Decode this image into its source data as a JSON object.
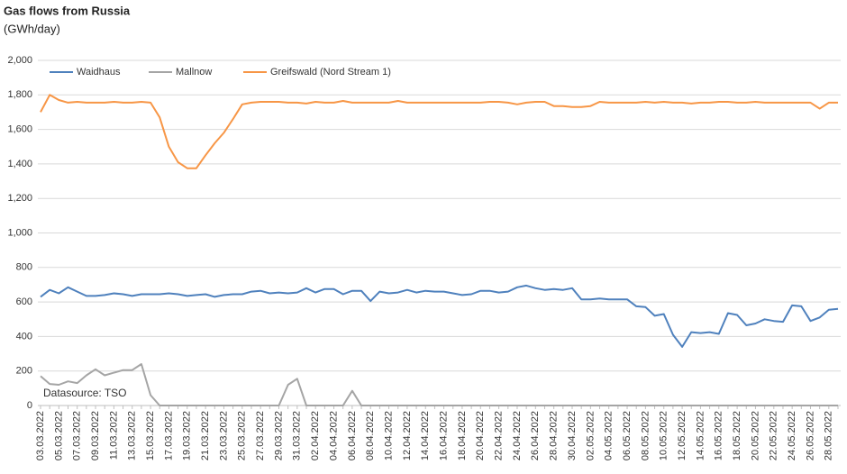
{
  "chart_data": {
    "type": "line",
    "title": "Gas flows from Russia",
    "subtitle": "(GWh/day)",
    "annotation": "Datasource: TSO",
    "categories": [
      "03.03.2022",
      null,
      "05.03.2022",
      null,
      "07.03.2022",
      null,
      "09.03.2022",
      null,
      "11.03.2022",
      null,
      "13.03.2022",
      null,
      "15.03.2022",
      null,
      "17.03.2022",
      null,
      "19.03.2022",
      null,
      "21.03.2022",
      null,
      "23.03.2022",
      null,
      "25.03.2022",
      null,
      "27.03.2022",
      null,
      "29.03.2022",
      null,
      "31.03.2022",
      null,
      "02.04.2022",
      null,
      "04.04.2022",
      null,
      "06.04.2022",
      null,
      "08.04.2022",
      null,
      "10.04.2022",
      null,
      "12.04.2022",
      null,
      "14.04.2022",
      null,
      "16.04.2022",
      null,
      "18.04.2022",
      null,
      "20.04.2022",
      null,
      "22.04.2022",
      null,
      "24.04.2022",
      null,
      "26.04.2022",
      null,
      "28.04.2022",
      null,
      "30.04.2022",
      null,
      "02.05.2022",
      null,
      "04.05.2022",
      null,
      "06.05.2022",
      null,
      "08.05.2022",
      null,
      "10.05.2022",
      null,
      "12.05.2022",
      null,
      "14.05.2022",
      null,
      "16.05.2022",
      null,
      "18.05.2022",
      null,
      "20.05.2022",
      null,
      "22.05.2022",
      null,
      "24.05.2022",
      null,
      "26.05.2022",
      null,
      "28.05.2022",
      null
    ],
    "series": [
      {
        "name": "Waidhaus",
        "color": "#4f81bd",
        "values": [
          630,
          670,
          650,
          685,
          660,
          635,
          635,
          640,
          650,
          645,
          635,
          645,
          645,
          645,
          650,
          645,
          635,
          640,
          645,
          630,
          640,
          645,
          645,
          660,
          665,
          650,
          655,
          650,
          655,
          680,
          655,
          675,
          675,
          645,
          665,
          665,
          605,
          660,
          650,
          655,
          670,
          655,
          665,
          660,
          660,
          650,
          640,
          645,
          665,
          665,
          655,
          660,
          685,
          695,
          680,
          670,
          675,
          670,
          680,
          615,
          615,
          620,
          615,
          615,
          615,
          575,
          570,
          520,
          530,
          410,
          340,
          425,
          420,
          425,
          415,
          535,
          525,
          465,
          475,
          500,
          490,
          485,
          580,
          575,
          490,
          510,
          555,
          560
        ]
      },
      {
        "name": "Mallnow",
        "color": "#a5a5a5",
        "values": [
          170,
          125,
          120,
          140,
          130,
          175,
          210,
          175,
          190,
          205,
          205,
          240,
          60,
          0,
          0,
          0,
          0,
          0,
          0,
          0,
          0,
          0,
          0,
          0,
          0,
          0,
          0,
          120,
          155,
          0,
          0,
          0,
          0,
          0,
          85,
          0,
          0,
          0,
          0,
          0,
          0,
          0,
          0,
          0,
          0,
          0,
          0,
          0,
          0,
          0,
          0,
          0,
          0,
          0,
          0,
          0,
          0,
          0,
          0,
          0,
          0,
          0,
          0,
          0,
          0,
          0,
          0,
          0,
          0,
          0,
          0,
          0,
          0,
          0,
          0,
          0,
          0,
          0,
          0,
          0,
          0,
          0,
          0,
          0,
          0,
          0,
          0,
          0
        ]
      },
      {
        "name": "Greifswald (Nord Stream 1)",
        "color": "#f79646",
        "values": [
          1700,
          1800,
          1770,
          1755,
          1760,
          1755,
          1755,
          1755,
          1760,
          1755,
          1755,
          1760,
          1755,
          1670,
          1500,
          1410,
          1375,
          1375,
          1450,
          1520,
          1580,
          1660,
          1745,
          1755,
          1760,
          1760,
          1760,
          1755,
          1755,
          1750,
          1760,
          1755,
          1755,
          1765,
          1755,
          1755,
          1755,
          1755,
          1755,
          1765,
          1755,
          1755,
          1755,
          1755,
          1755,
          1755,
          1755,
          1755,
          1755,
          1760,
          1760,
          1755,
          1745,
          1755,
          1760,
          1760,
          1735,
          1735,
          1730,
          1730,
          1735,
          1760,
          1755,
          1755,
          1755,
          1755,
          1760,
          1755,
          1760,
          1755,
          1755,
          1750,
          1755,
          1755,
          1760,
          1760,
          1755,
          1755,
          1760,
          1755,
          1755,
          1755,
          1755,
          1755,
          1755,
          1720,
          1755,
          1755
        ]
      }
    ],
    "ylim": [
      0,
      2000
    ],
    "yticks": [
      0,
      200,
      400,
      600,
      800,
      {
        "value": 1000,
        "label": "1,000"
      },
      {
        "value": 1200,
        "label": "1,200"
      },
      {
        "value": 1400,
        "label": "1,400"
      },
      {
        "value": 1600,
        "label": "1,600"
      },
      {
        "value": 1800,
        "label": "1,800"
      },
      {
        "value": 2000,
        "label": "2,000"
      }
    ],
    "grid": true,
    "legend": "top"
  }
}
